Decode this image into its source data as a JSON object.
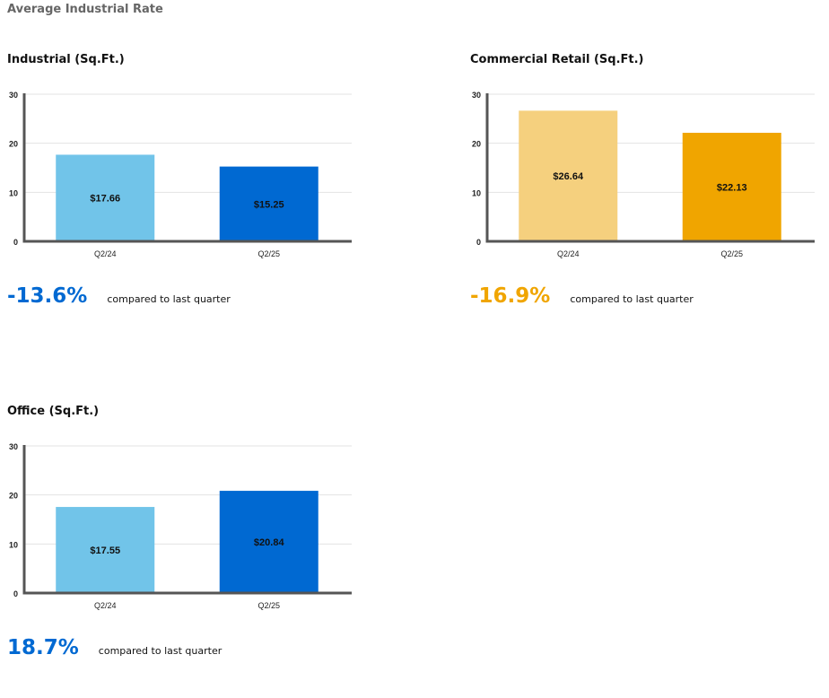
{
  "page_title": "Average Industrial Rate",
  "chart_data": [
    {
      "type": "bar",
      "title": "Industrial (Sq.Ft.)",
      "categories": [
        "Q2/24",
        "Q2/25"
      ],
      "values": [
        17.66,
        15.25
      ],
      "data_labels": [
        "$17.66",
        "$15.25"
      ],
      "colors": [
        "#71C4E9",
        "#0069D2"
      ],
      "yticks": [
        "0",
        "10",
        "20",
        "30"
      ],
      "ylim": [
        0,
        30
      ],
      "grid": true,
      "change": {
        "value": "-13.6%",
        "label": "compared to last quarter",
        "color": "#0069D2"
      }
    },
    {
      "type": "bar",
      "title": "Commercial Retail (Sq.Ft.)",
      "categories": [
        "Q2/24",
        "Q2/25"
      ],
      "values": [
        26.64,
        22.13
      ],
      "data_labels": [
        "$26.64",
        "$22.13"
      ],
      "colors": [
        "#F5D07E",
        "#F0A500"
      ],
      "yticks": [
        "0",
        "10",
        "20",
        "30"
      ],
      "ylim": [
        0,
        30
      ],
      "grid": true,
      "change": {
        "value": "-16.9%",
        "label": "compared to last quarter",
        "color": "#F0A500"
      }
    },
    {
      "type": "bar",
      "title": "Office (Sq.Ft.)",
      "categories": [
        "Q2/24",
        "Q2/25"
      ],
      "values": [
        17.55,
        20.84
      ],
      "data_labels": [
        "$17.55",
        "$20.84"
      ],
      "colors": [
        "#71C4E9",
        "#0069D2"
      ],
      "yticks": [
        "0",
        "10",
        "20",
        "30"
      ],
      "ylim": [
        0,
        30
      ],
      "grid": true,
      "change": {
        "value": "18.7%",
        "label": "compared to last quarter",
        "color": "#0069D2"
      }
    }
  ]
}
